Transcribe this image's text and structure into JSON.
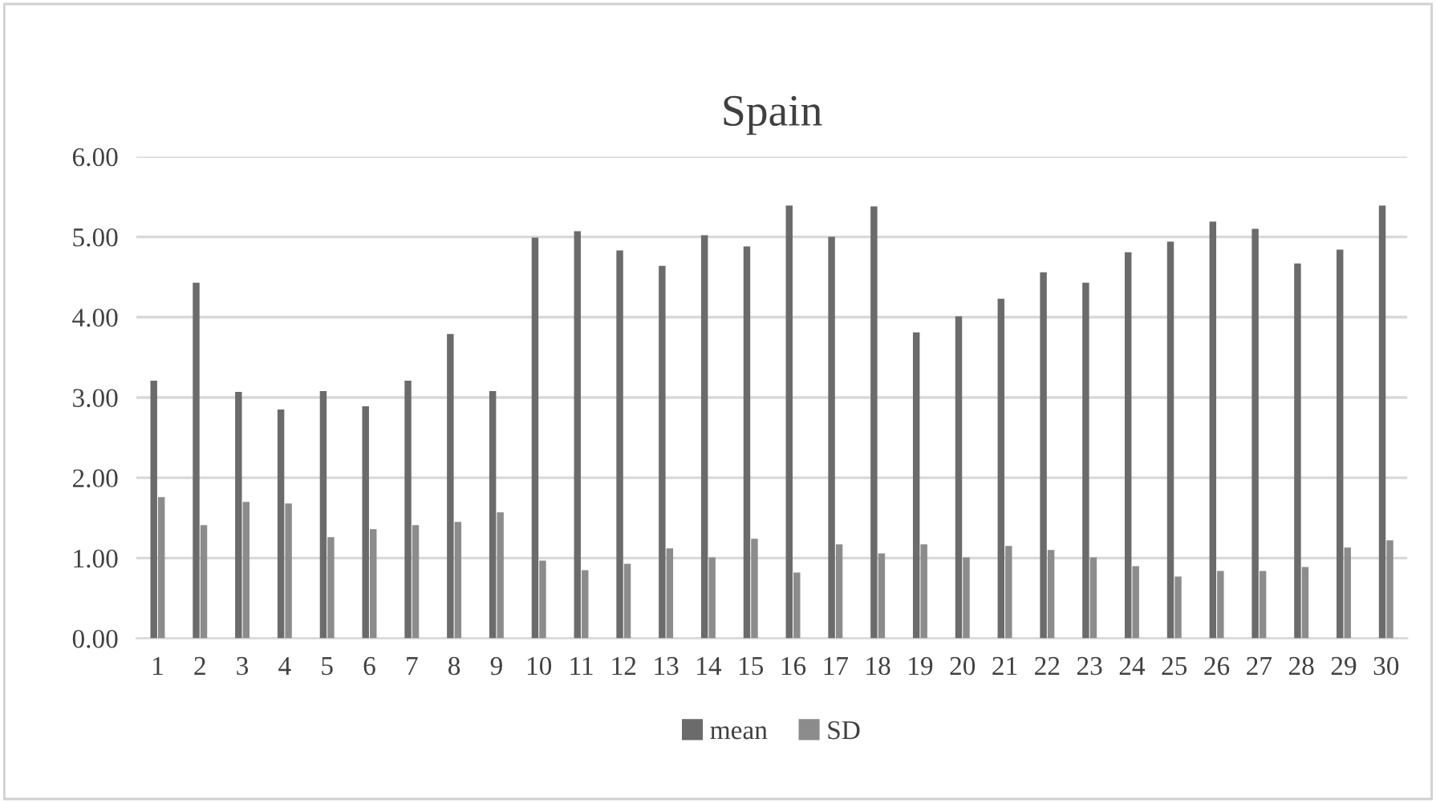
{
  "chart_data": {
    "type": "bar",
    "title": "Spain",
    "categories": [
      "1",
      "2",
      "3",
      "4",
      "5",
      "6",
      "7",
      "8",
      "9",
      "10",
      "11",
      "12",
      "13",
      "14",
      "15",
      "16",
      "17",
      "18",
      "19",
      "20",
      "21",
      "22",
      "23",
      "24",
      "25",
      "26",
      "27",
      "28",
      "29",
      "30"
    ],
    "series": [
      {
        "name": "mean",
        "color": "#6b6b6b",
        "values": [
          3.21,
          4.43,
          3.07,
          2.85,
          3.08,
          2.89,
          3.21,
          3.79,
          3.08,
          4.99,
          5.07,
          4.83,
          4.64,
          5.02,
          4.88,
          5.39,
          5.0,
          5.38,
          3.81,
          4.01,
          4.23,
          4.56,
          4.43,
          4.81,
          4.94,
          5.19,
          5.1,
          4.67,
          4.84,
          5.39
        ]
      },
      {
        "name": "SD",
        "color": "#8c8c8c",
        "values": [
          1.76,
          1.41,
          1.7,
          1.68,
          1.26,
          1.36,
          1.41,
          1.45,
          1.57,
          0.97,
          0.85,
          0.93,
          1.12,
          1.01,
          1.24,
          0.82,
          1.17,
          1.06,
          1.17,
          1.01,
          1.15,
          1.1,
          1.01,
          0.9,
          0.77,
          0.84,
          0.84,
          0.89,
          1.13,
          1.22
        ]
      }
    ],
    "ylim": [
      0,
      6
    ],
    "yticks": [
      {
        "value": 0,
        "label": "0.00"
      },
      {
        "value": 1,
        "label": "1.00"
      },
      {
        "value": 2,
        "label": "2.00"
      },
      {
        "value": 3,
        "label": "3.00"
      },
      {
        "value": 4,
        "label": "4.00"
      },
      {
        "value": 5,
        "label": "5.00"
      },
      {
        "value": 6,
        "label": "6.00"
      }
    ],
    "grid": "y",
    "legend": "bottom"
  }
}
